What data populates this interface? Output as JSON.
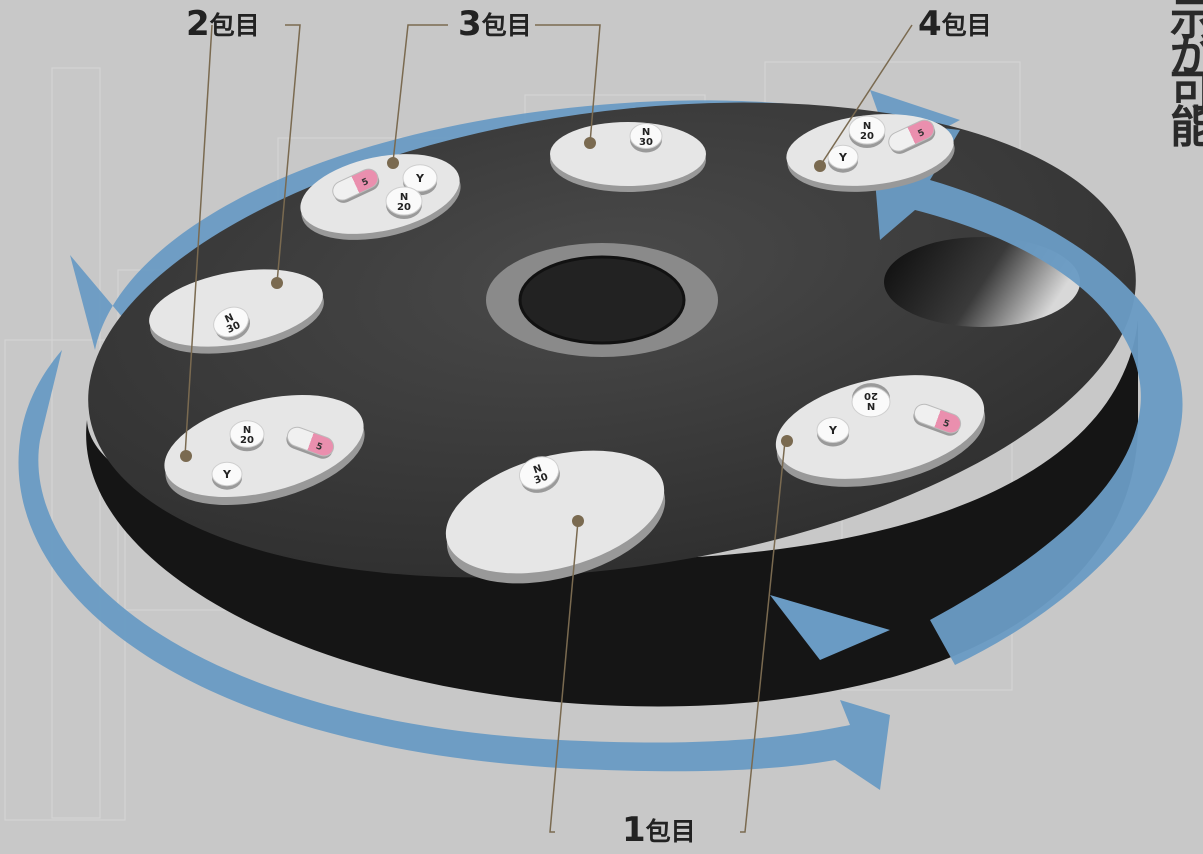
{
  "labels": {
    "pack1": {
      "num": "1",
      "suffix": "包目"
    },
    "pack2": {
      "num": "2",
      "suffix": "包目"
    },
    "pack3": {
      "num": "3",
      "suffix": "包目"
    },
    "pack4": {
      "num": "4",
      "suffix": "包目"
    }
  },
  "side_text": "示が可能。",
  "pill_marks": {
    "n20": [
      "N",
      "20"
    ],
    "n30": [
      "N",
      "30"
    ],
    "y": "Y",
    "capsule": "5"
  },
  "colors": {
    "background": "#c8c8c8",
    "tray": "#3a3a3a",
    "tray_edge": "#151515",
    "arrow": "#6a9bc4",
    "plate": "#e6e6e6",
    "capsule_pink": "#e88aa8",
    "leader_line": "#7a6a50"
  }
}
